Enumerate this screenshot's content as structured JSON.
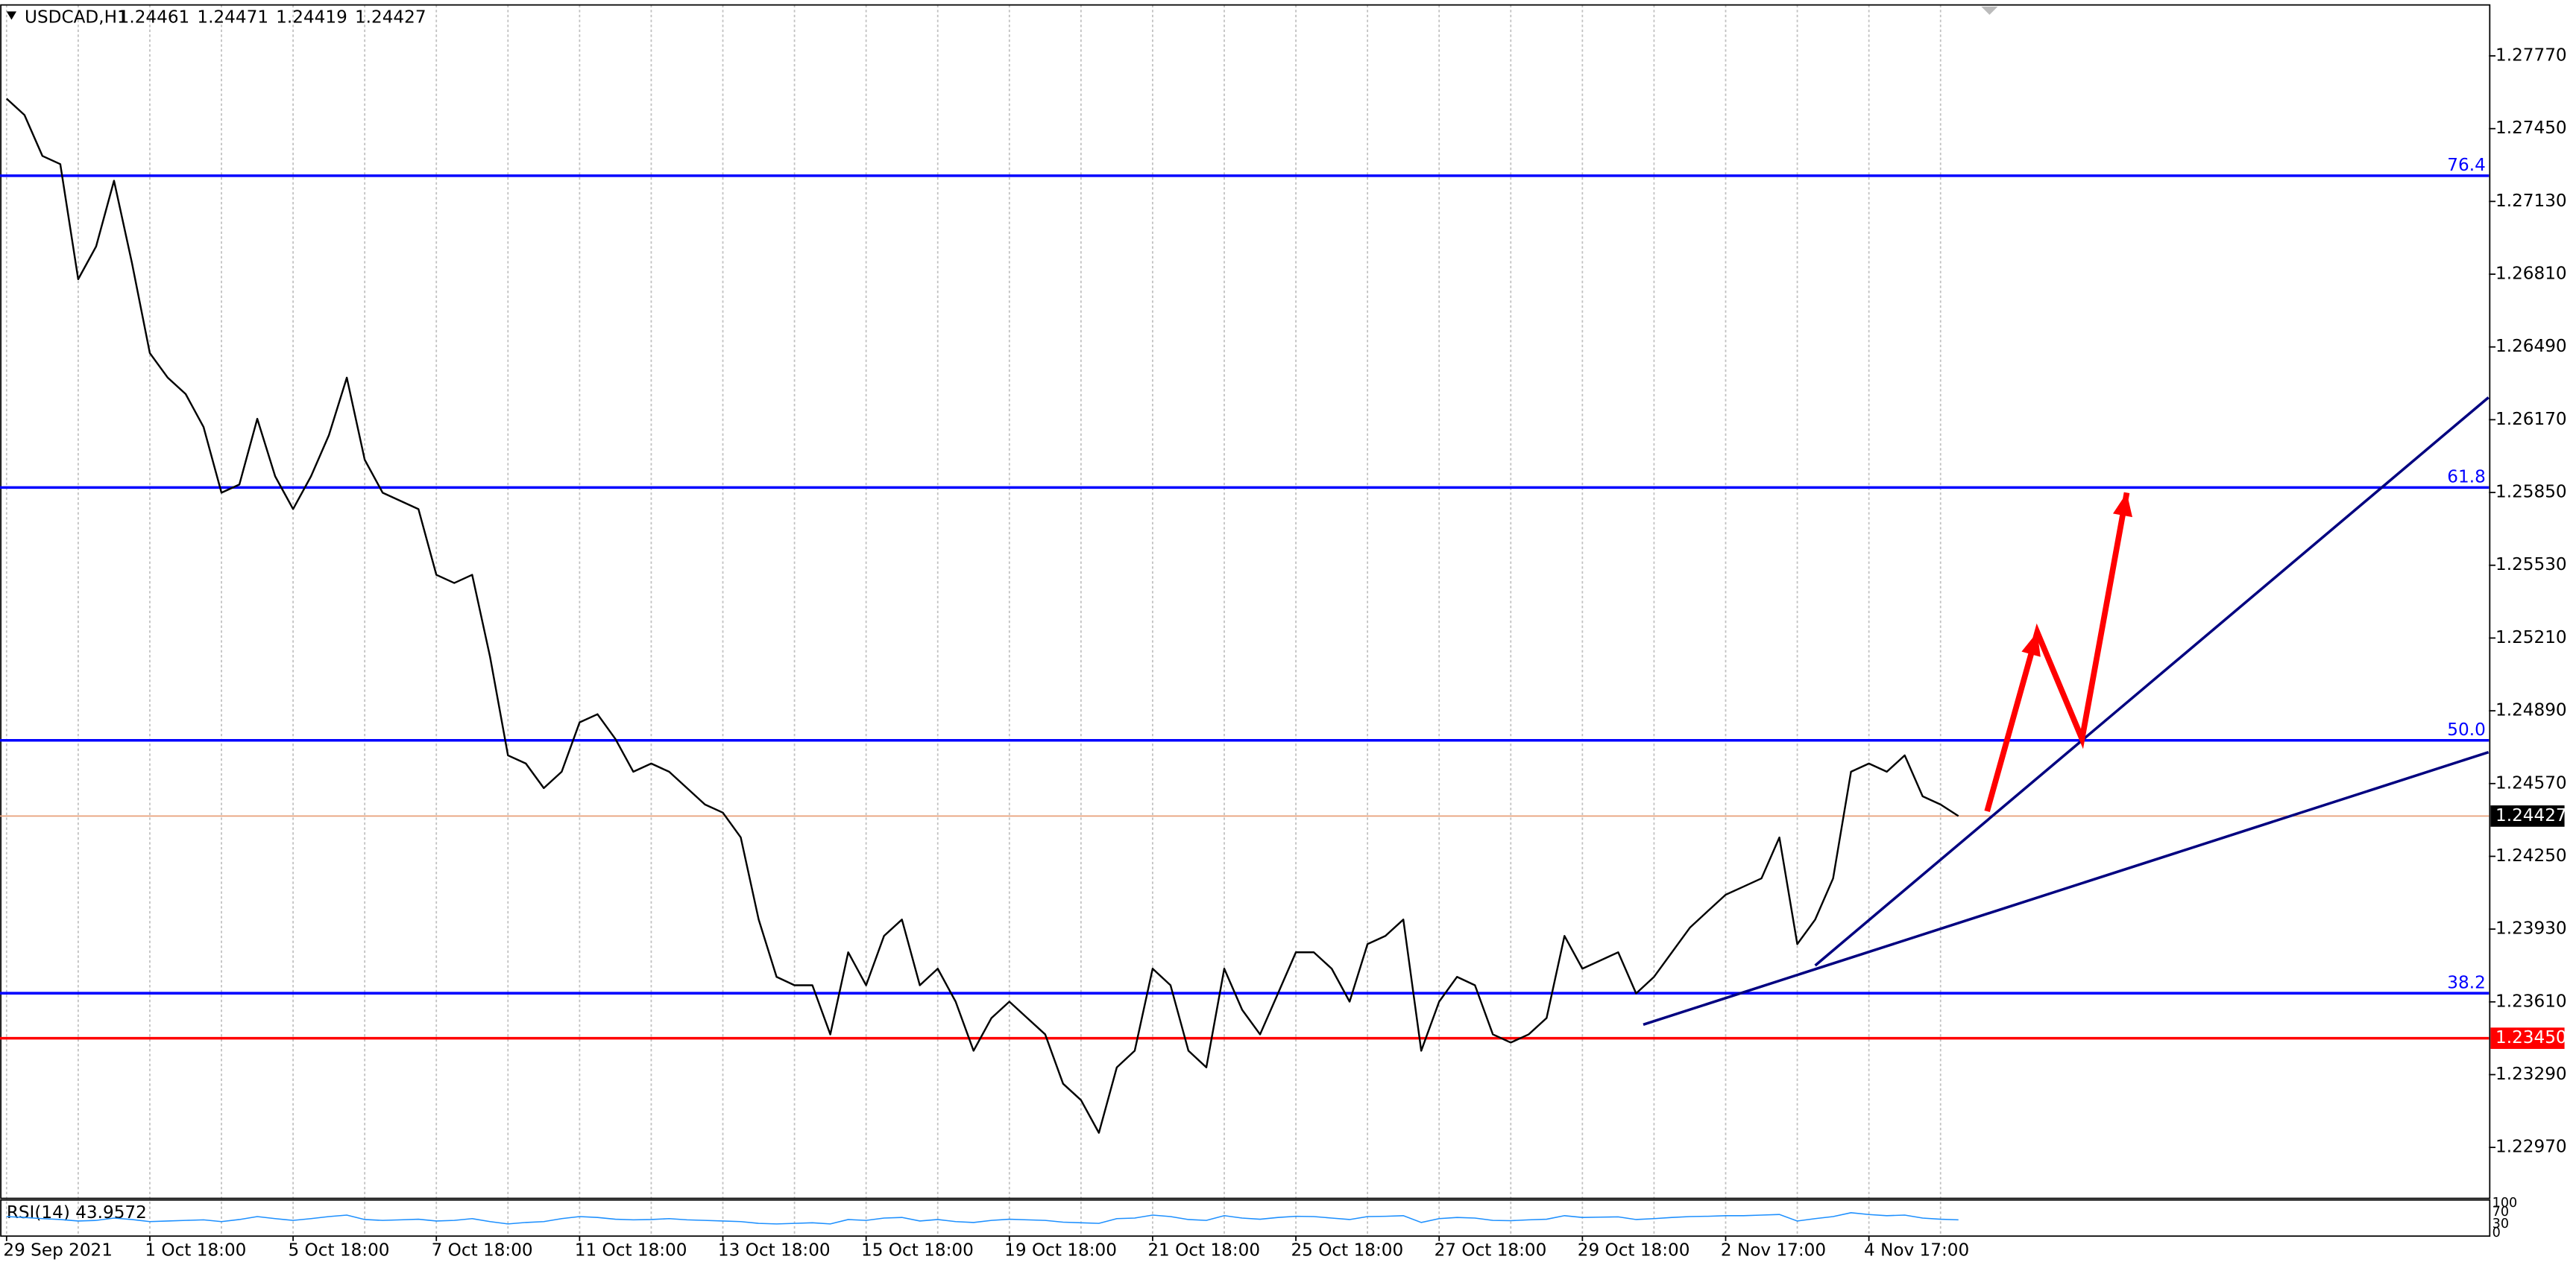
{
  "chart_data": {
    "type": "line",
    "title": "USDCAD,H1",
    "header_values": [
      1.24461,
      1.24471,
      1.24419,
      1.24427
    ],
    "color": "#000000",
    "grid": true,
    "categories": [
      "29 Sep 2021",
      null,
      null,
      null,
      null,
      null,
      null,
      null,
      "1 Oct 18:00",
      null,
      null,
      null,
      null,
      null,
      null,
      null,
      "5 Oct 18:00",
      null,
      null,
      null,
      null,
      null,
      null,
      null,
      "7 Oct 18:00",
      null,
      null,
      null,
      null,
      null,
      null,
      null,
      "11 Oct 18:00",
      null,
      null,
      null,
      null,
      null,
      null,
      null,
      "13 Oct 18:00",
      null,
      null,
      null,
      null,
      null,
      null,
      null,
      "15 Oct 18:00",
      null,
      null,
      null,
      null,
      null,
      null,
      null,
      "19 Oct 18:00",
      null,
      null,
      null,
      null,
      null,
      null,
      null,
      "21 Oct 18:00",
      null,
      null,
      null,
      null,
      null,
      null,
      null,
      "25 Oct 18:00",
      null,
      null,
      null,
      null,
      null,
      null,
      null,
      "27 Oct 18:00",
      null,
      null,
      null,
      null,
      null,
      null,
      null,
      "29 Oct 18:00",
      null,
      null,
      null,
      null,
      null,
      null,
      null,
      "2 Nov 17:00",
      null,
      null,
      null,
      null,
      null,
      null,
      null,
      "4 Nov 17:00",
      null,
      null,
      null,
      null,
      null
    ],
    "values": [
      1.27582,
      1.2751,
      1.2733,
      1.27294,
      1.26788,
      1.26932,
      1.27221,
      1.2686,
      1.26463,
      1.26355,
      1.26283,
      1.26138,
      1.25849,
      1.25885,
      1.26174,
      1.25921,
      1.25777,
      1.25921,
      1.26102,
      1.26355,
      1.25994,
      1.25849,
      1.25813,
      1.25777,
      1.25488,
      1.25452,
      1.25488,
      1.25127,
      1.24694,
      1.24658,
      1.2455,
      1.24622,
      1.24839,
      1.24875,
      1.24766,
      1.24622,
      1.24658,
      1.24622,
      1.2455,
      1.24478,
      1.24442,
      1.24333,
      1.23972,
      1.2372,
      1.23683,
      1.23683,
      1.23467,
      1.23828,
      1.23683,
      1.239,
      1.23972,
      1.23683,
      1.23756,
      1.23611,
      1.23395,
      1.23539,
      1.23611,
      1.23539,
      1.23467,
      1.2325,
      1.23178,
      1.23034,
      1.23322,
      1.23395,
      1.23756,
      1.23683,
      1.23395,
      1.23322,
      1.23756,
      1.23575,
      1.23467,
      1.23647,
      1.23828,
      1.23828,
      1.23756,
      1.23611,
      1.23864,
      1.239,
      1.23972,
      1.23395,
      1.23611,
      1.2372,
      1.23683,
      1.23467,
      1.23431,
      1.23467,
      1.23539,
      1.239,
      1.23756,
      1.23792,
      1.23828,
      1.23647,
      1.2372,
      1.23828,
      1.23936,
      1.24009,
      1.24081,
      1.24117,
      1.24153,
      1.24333,
      1.23864,
      1.23972,
      1.24153,
      1.24622,
      1.24658,
      1.24622,
      1.24694,
      1.24514,
      1.24478,
      1.24427
    ],
    "ylim": [
      1.22746,
      1.27994
    ],
    "yticks": [
      {
        "value": 1.2777,
        "label": "1.27770"
      },
      {
        "value": 1.2745,
        "label": "1.27450"
      },
      {
        "value": 1.2713,
        "label": "1.27130"
      },
      {
        "value": 1.2681,
        "label": "1.26810"
      },
      {
        "value": 1.2649,
        "label": "1.26490"
      },
      {
        "value": 1.2617,
        "label": "1.26170"
      },
      {
        "value": 1.2585,
        "label": "1.25850"
      },
      {
        "value": 1.2553,
        "label": "1.25530"
      },
      {
        "value": 1.2521,
        "label": "1.25210"
      },
      {
        "value": 1.2489,
        "label": "1.24890"
      },
      {
        "value": 1.2457,
        "label": "1.24570"
      },
      {
        "value": 1.2425,
        "label": "1.24250"
      },
      {
        "value": 1.2393,
        "label": "1.23930"
      },
      {
        "value": 1.2361,
        "label": "1.23610"
      },
      {
        "value": 1.2329,
        "label": "1.23290"
      },
      {
        "value": 1.2297,
        "label": "1.22970"
      }
    ],
    "current_price": {
      "value": 1.24427,
      "color": "#e8a07a"
    },
    "levels": [
      {
        "label": "76.4",
        "value": 1.27243,
        "color": "#0000ff"
      },
      {
        "label": "61.8",
        "value": 1.25872,
        "color": "#0000ff"
      },
      {
        "label": "50.0",
        "value": 1.2476,
        "color": "#0000ff"
      },
      {
        "label": "38.2",
        "value": 1.23648,
        "color": "#0000ff"
      }
    ],
    "alert_level": {
      "value": 1.2345,
      "label": "1.23450",
      "color": "#ff0000"
    },
    "trendlines": [
      {
        "x": [
          91.4,
          138.6
        ],
        "y": [
          1.2351,
          1.24708
        ],
        "color": "#000080"
      },
      {
        "x": [
          101.0,
          138.6
        ],
        "y": [
          1.2377,
          1.26268
        ],
        "color": "#000080"
      }
    ],
    "arrows": {
      "x": [
        110.6,
        113.4,
        115.9,
        118.4
      ],
      "y": [
        1.24448,
        1.25236,
        1.24766,
        1.25849
      ],
      "color": "#ff0000"
    },
    "rsi": {
      "label": "RSI(14) 43.9572",
      "color": "#1e90ff",
      "ylim": [
        0,
        100
      ],
      "yticks": [
        100,
        70,
        30,
        0
      ],
      "values": [
        55,
        52,
        48,
        45,
        40,
        42,
        50,
        45,
        38,
        40,
        42,
        44,
        38,
        45,
        55,
        48,
        42,
        48,
        55,
        60,
        45,
        42,
        44,
        46,
        40,
        42,
        48,
        38,
        30,
        35,
        38,
        48,
        55,
        52,
        46,
        44,
        45,
        48,
        44,
        42,
        40,
        38,
        32,
        30,
        32,
        34,
        30,
        45,
        42,
        50,
        52,
        40,
        45,
        38,
        35,
        42,
        46,
        44,
        42,
        36,
        34,
        32,
        48,
        50,
        60,
        55,
        45,
        42,
        58,
        50,
        46,
        52,
        56,
        55,
        50,
        45,
        55,
        56,
        58,
        35,
        48,
        52,
        50,
        42,
        41,
        44,
        46,
        58,
        52,
        53,
        54,
        45,
        48,
        52,
        55,
        56,
        58,
        58,
        60,
        62,
        40,
        48,
        55,
        68,
        62,
        58,
        60,
        50,
        46,
        43.9572
      ]
    }
  }
}
